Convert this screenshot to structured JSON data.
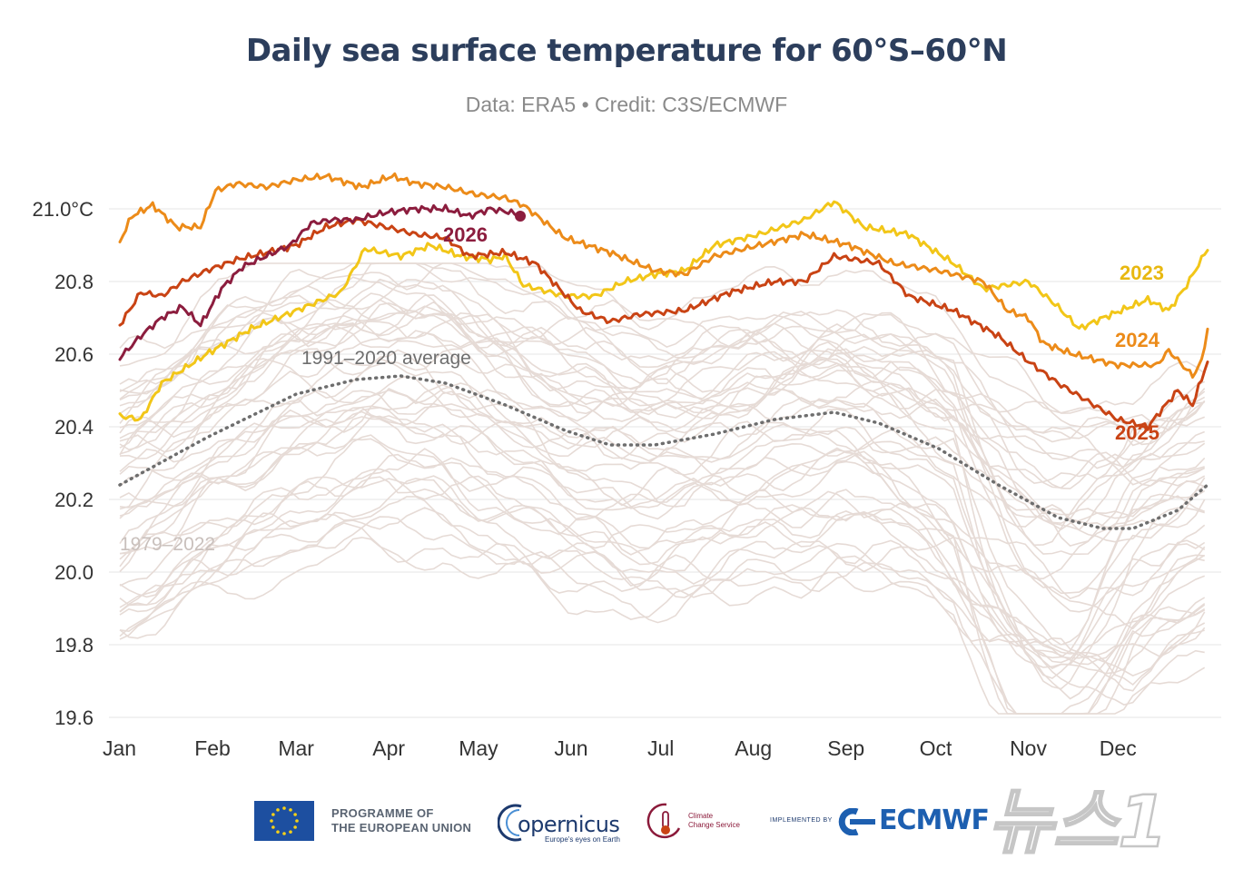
{
  "chart_data": {
    "type": "line",
    "title": "Daily sea surface temperature for 60°S–60°N",
    "subtitle": "Data: ERA5 • Credit: C3S/ECMWF",
    "x_categories": [
      "Jan",
      "Feb",
      "Mar",
      "Apr",
      "May",
      "Jun",
      "Jul",
      "Aug",
      "Sep",
      "Oct",
      "Nov",
      "Dec"
    ],
    "ylim": [
      19.6,
      21.1
    ],
    "yticks": [
      "21.0°C",
      "20.8",
      "20.6",
      "20.4",
      "20.2",
      "20.0",
      "19.8",
      "19.6"
    ],
    "ytick_values": [
      21.0,
      20.8,
      20.6,
      20.4,
      20.2,
      20.0,
      19.8,
      19.6
    ],
    "grid": true,
    "x_unit": "day of year",
    "series": [
      {
        "name": "2023",
        "color": "#f2c618",
        "width": 3,
        "points": [
          [
            1,
            20.43
          ],
          [
            8,
            20.42
          ],
          [
            15,
            20.52
          ],
          [
            30,
            20.6
          ],
          [
            45,
            20.67
          ],
          [
            60,
            20.72
          ],
          [
            75,
            20.77
          ],
          [
            83,
            20.89
          ],
          [
            95,
            20.87
          ],
          [
            105,
            20.9
          ],
          [
            115,
            20.87
          ],
          [
            125,
            20.86
          ],
          [
            130,
            20.87
          ],
          [
            136,
            20.79
          ],
          [
            150,
            20.76
          ],
          [
            160,
            20.76
          ],
          [
            170,
            20.8
          ],
          [
            180,
            20.82
          ],
          [
            190,
            20.83
          ],
          [
            200,
            20.9
          ],
          [
            215,
            20.93
          ],
          [
            230,
            20.97
          ],
          [
            240,
            21.02
          ],
          [
            250,
            20.95
          ],
          [
            265,
            20.93
          ],
          [
            280,
            20.85
          ],
          [
            290,
            20.78
          ],
          [
            305,
            20.8
          ],
          [
            315,
            20.73
          ],
          [
            322,
            20.67
          ],
          [
            330,
            20.7
          ],
          [
            345,
            20.75
          ],
          [
            352,
            20.72
          ],
          [
            358,
            20.79
          ],
          [
            365,
            20.89
          ]
        ]
      },
      {
        "name": "2024",
        "color": "#ec8b19",
        "width": 3,
        "points": [
          [
            1,
            20.91
          ],
          [
            5,
            20.98
          ],
          [
            12,
            21.01
          ],
          [
            20,
            20.95
          ],
          [
            28,
            20.95
          ],
          [
            33,
            21.05
          ],
          [
            40,
            21.07
          ],
          [
            50,
            21.06
          ],
          [
            60,
            21.08
          ],
          [
            70,
            21.09
          ],
          [
            82,
            21.06
          ],
          [
            92,
            21.09
          ],
          [
            100,
            21.07
          ],
          [
            110,
            21.06
          ],
          [
            120,
            21.04
          ],
          [
            130,
            21.03
          ],
          [
            136,
            21.01
          ],
          [
            150,
            20.92
          ],
          [
            165,
            20.88
          ],
          [
            180,
            20.83
          ],
          [
            190,
            20.82
          ],
          [
            200,
            20.87
          ],
          [
            215,
            20.9
          ],
          [
            230,
            20.93
          ],
          [
            245,
            20.9
          ],
          [
            260,
            20.85
          ],
          [
            275,
            20.83
          ],
          [
            290,
            20.8
          ],
          [
            298,
            20.72
          ],
          [
            305,
            20.7
          ],
          [
            310,
            20.63
          ],
          [
            320,
            20.6
          ],
          [
            335,
            20.57
          ],
          [
            348,
            20.57
          ],
          [
            352,
            20.61
          ],
          [
            360,
            20.54
          ],
          [
            363,
            20.58
          ],
          [
            365,
            20.67
          ]
        ]
      },
      {
        "name": "2025",
        "color": "#c94314",
        "width": 3,
        "points": [
          [
            1,
            20.68
          ],
          [
            8,
            20.77
          ],
          [
            15,
            20.76
          ],
          [
            22,
            20.8
          ],
          [
            30,
            20.83
          ],
          [
            40,
            20.86
          ],
          [
            50,
            20.88
          ],
          [
            60,
            20.9
          ],
          [
            70,
            20.95
          ],
          [
            80,
            20.97
          ],
          [
            90,
            20.95
          ],
          [
            100,
            20.93
          ],
          [
            110,
            20.92
          ],
          [
            118,
            20.87
          ],
          [
            130,
            20.88
          ],
          [
            140,
            20.85
          ],
          [
            155,
            20.72
          ],
          [
            165,
            20.69
          ],
          [
            175,
            20.71
          ],
          [
            190,
            20.72
          ],
          [
            205,
            20.77
          ],
          [
            220,
            20.8
          ],
          [
            230,
            20.8
          ],
          [
            240,
            20.87
          ],
          [
            255,
            20.85
          ],
          [
            265,
            20.76
          ],
          [
            280,
            20.72
          ],
          [
            295,
            20.65
          ],
          [
            305,
            20.58
          ],
          [
            315,
            20.52
          ],
          [
            325,
            20.47
          ],
          [
            335,
            20.42
          ],
          [
            345,
            20.4
          ],
          [
            355,
            20.5
          ],
          [
            360,
            20.46
          ],
          [
            365,
            20.58
          ]
        ]
      },
      {
        "name": "2026",
        "color": "#8c1d3e",
        "width": 3,
        "endpoint": true,
        "points": [
          [
            1,
            20.59
          ],
          [
            8,
            20.65
          ],
          [
            15,
            20.7
          ],
          [
            22,
            20.73
          ],
          [
            28,
            20.68
          ],
          [
            35,
            20.78
          ],
          [
            42,
            20.84
          ],
          [
            50,
            20.87
          ],
          [
            58,
            20.9
          ],
          [
            65,
            20.96
          ],
          [
            72,
            20.97
          ],
          [
            80,
            20.97
          ],
          [
            90,
            20.99
          ],
          [
            100,
            21.0
          ],
          [
            110,
            21.0
          ],
          [
            118,
            20.98
          ],
          [
            125,
            21.0
          ],
          [
            132,
            20.99
          ],
          [
            135,
            20.98
          ]
        ]
      },
      {
        "name": "",
        "color": "#6e6e6e",
        "width": 3,
        "dotted": true,
        "points": [
          [
            1,
            20.24
          ],
          [
            30,
            20.37
          ],
          [
            60,
            20.49
          ],
          [
            80,
            20.53
          ],
          [
            95,
            20.54
          ],
          [
            110,
            20.52
          ],
          [
            130,
            20.46
          ],
          [
            150,
            20.39
          ],
          [
            165,
            20.35
          ],
          [
            180,
            20.35
          ],
          [
            200,
            20.38
          ],
          [
            220,
            20.42
          ],
          [
            240,
            20.44
          ],
          [
            255,
            20.41
          ],
          [
            275,
            20.34
          ],
          [
            295,
            20.24
          ],
          [
            315,
            20.15
          ],
          [
            330,
            20.12
          ],
          [
            340,
            20.12
          ],
          [
            355,
            20.17
          ],
          [
            365,
            20.24
          ]
        ]
      }
    ],
    "labels": {
      "s2023": "2023",
      "s2024": "2024",
      "s2025": "2025",
      "s2026": "2026",
      "average": "1991–2020 average",
      "historical": "1979–2022"
    },
    "background_series": {
      "name": "1979–2022",
      "color": "#e6dbd6",
      "count": 44,
      "profile_points": [
        [
          1,
          0.0
        ],
        [
          30,
          0.13
        ],
        [
          60,
          0.25
        ],
        [
          90,
          0.3
        ],
        [
          110,
          0.28
        ],
        [
          130,
          0.22
        ],
        [
          150,
          0.15
        ],
        [
          170,
          0.11
        ],
        [
          190,
          0.12
        ],
        [
          210,
          0.16
        ],
        [
          240,
          0.2
        ],
        [
          260,
          0.17
        ],
        [
          280,
          0.08
        ],
        [
          300,
          -0.04
        ],
        [
          320,
          -0.11
        ],
        [
          340,
          -0.11
        ],
        [
          365,
          0.0
        ]
      ],
      "start_range": [
        19.8,
        20.6
      ],
      "trend_spread": 0.55
    }
  },
  "footer": {
    "eu_line1": "PROGRAMME OF",
    "eu_line2": "THE EUROPEAN UNION",
    "copernicus_word": "opernicus",
    "copernicus_tagline": "Europe's eyes on Earth",
    "c3s_line1": "Climate",
    "c3s_line2": "Change Service",
    "implemented_by": "IMPLEMENTED BY",
    "ecmwf": "ECMWF"
  },
  "watermark": "뉴스1"
}
